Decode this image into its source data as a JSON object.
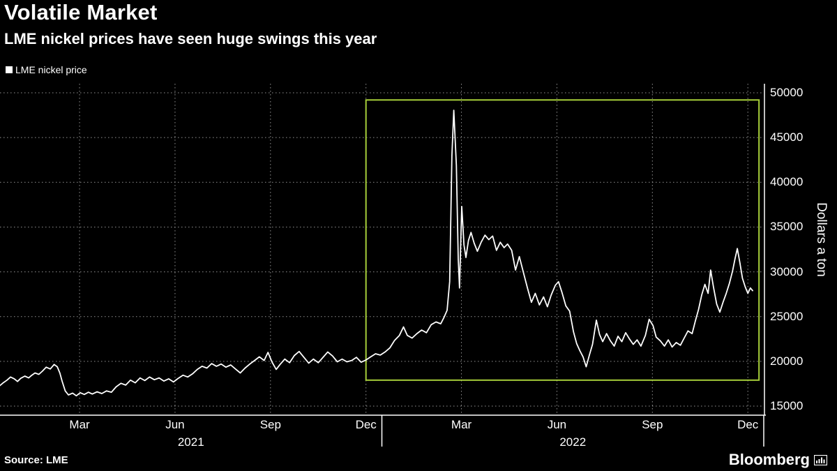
{
  "header": {
    "title": "Volatile Market",
    "subtitle": "LME nickel prices have seen huge swings this year"
  },
  "legend": {
    "items": [
      {
        "label": "LME nickel price",
        "color": "#ffffff"
      }
    ]
  },
  "footer": {
    "source": "Source: LME",
    "brand": "Bloomberg"
  },
  "colors": {
    "background": "#000000",
    "line": "#ffffff",
    "highlight_box": "#a6ce39",
    "grid": "#b9b9b9"
  },
  "chart_data": {
    "type": "line",
    "title": "Volatile Market",
    "subtitle": "LME nickel prices have seen huge swings this year",
    "ylabel": "Dollars a ton",
    "ylim": [
      14000,
      51000
    ],
    "yticks": [
      15000,
      20000,
      25000,
      30000,
      35000,
      40000,
      45000,
      50000
    ],
    "grid": "dotted",
    "legend_position": "top-left",
    "xlim_months": [
      0,
      24
    ],
    "month_zero": "2021-01",
    "xticks": [
      {
        "month": 2.5,
        "label": "Mar"
      },
      {
        "month": 5.5,
        "label": "Jun"
      },
      {
        "month": 8.5,
        "label": "Sep"
      },
      {
        "month": 11.5,
        "label": "Dec"
      },
      {
        "month": 14.5,
        "label": "Mar"
      },
      {
        "month": 17.5,
        "label": "Jun"
      },
      {
        "month": 20.5,
        "label": "Sep"
      },
      {
        "month": 23.5,
        "label": "Dec"
      }
    ],
    "year_labels": [
      {
        "label": "2021",
        "month": 6
      },
      {
        "label": "2022",
        "month": 18
      }
    ],
    "year_tick_months": [
      12,
      24
    ],
    "highlight_box": {
      "x0_month": 11.5,
      "x1_month": 23.85,
      "y0": 17900,
      "y1": 49200,
      "color": "#a6ce39"
    },
    "series": [
      {
        "name": "LME nickel price",
        "color": "#ffffff",
        "points": [
          [
            0.0,
            17300
          ],
          [
            0.1,
            17600
          ],
          [
            0.22,
            17900
          ],
          [
            0.33,
            18250
          ],
          [
            0.45,
            18050
          ],
          [
            0.55,
            17750
          ],
          [
            0.65,
            18100
          ],
          [
            0.78,
            18350
          ],
          [
            0.9,
            18150
          ],
          [
            1.0,
            18450
          ],
          [
            1.1,
            18700
          ],
          [
            1.22,
            18550
          ],
          [
            1.33,
            18900
          ],
          [
            1.45,
            19350
          ],
          [
            1.58,
            19150
          ],
          [
            1.7,
            19650
          ],
          [
            1.8,
            19400
          ],
          [
            1.88,
            18700
          ],
          [
            1.95,
            17800
          ],
          [
            2.05,
            16700
          ],
          [
            2.15,
            16250
          ],
          [
            2.28,
            16450
          ],
          [
            2.4,
            16150
          ],
          [
            2.52,
            16500
          ],
          [
            2.65,
            16300
          ],
          [
            2.78,
            16550
          ],
          [
            2.9,
            16350
          ],
          [
            3.05,
            16600
          ],
          [
            3.2,
            16400
          ],
          [
            3.35,
            16700
          ],
          [
            3.5,
            16550
          ],
          [
            3.65,
            17150
          ],
          [
            3.8,
            17550
          ],
          [
            3.95,
            17350
          ],
          [
            4.1,
            17900
          ],
          [
            4.25,
            17600
          ],
          [
            4.4,
            18150
          ],
          [
            4.55,
            17850
          ],
          [
            4.7,
            18250
          ],
          [
            4.85,
            17950
          ],
          [
            5.0,
            18150
          ],
          [
            5.15,
            17800
          ],
          [
            5.3,
            18050
          ],
          [
            5.45,
            17700
          ],
          [
            5.6,
            18100
          ],
          [
            5.75,
            18450
          ],
          [
            5.9,
            18250
          ],
          [
            6.05,
            18600
          ],
          [
            6.2,
            19100
          ],
          [
            6.35,
            19450
          ],
          [
            6.5,
            19250
          ],
          [
            6.65,
            19750
          ],
          [
            6.8,
            19450
          ],
          [
            6.95,
            19700
          ],
          [
            7.1,
            19350
          ],
          [
            7.25,
            19600
          ],
          [
            7.4,
            19150
          ],
          [
            7.55,
            18700
          ],
          [
            7.7,
            19250
          ],
          [
            7.85,
            19700
          ],
          [
            8.0,
            20100
          ],
          [
            8.15,
            20500
          ],
          [
            8.3,
            20100
          ],
          [
            8.42,
            21000
          ],
          [
            8.55,
            19900
          ],
          [
            8.68,
            19100
          ],
          [
            8.8,
            19650
          ],
          [
            8.95,
            20250
          ],
          [
            9.1,
            19850
          ],
          [
            9.25,
            20650
          ],
          [
            9.4,
            21100
          ],
          [
            9.55,
            20450
          ],
          [
            9.7,
            19800
          ],
          [
            9.85,
            20250
          ],
          [
            10.0,
            19850
          ],
          [
            10.15,
            20450
          ],
          [
            10.3,
            21050
          ],
          [
            10.45,
            20600
          ],
          [
            10.6,
            19950
          ],
          [
            10.75,
            20250
          ],
          [
            10.9,
            19950
          ],
          [
            11.05,
            20100
          ],
          [
            11.2,
            20450
          ],
          [
            11.35,
            19900
          ],
          [
            11.5,
            20150
          ],
          [
            11.65,
            20500
          ],
          [
            11.8,
            20850
          ],
          [
            11.95,
            20700
          ],
          [
            12.1,
            21050
          ],
          [
            12.25,
            21500
          ],
          [
            12.4,
            22350
          ],
          [
            12.55,
            22900
          ],
          [
            12.68,
            23850
          ],
          [
            12.8,
            22900
          ],
          [
            12.95,
            22600
          ],
          [
            13.1,
            23100
          ],
          [
            13.25,
            23500
          ],
          [
            13.4,
            23200
          ],
          [
            13.55,
            24100
          ],
          [
            13.7,
            24400
          ],
          [
            13.85,
            24200
          ],
          [
            13.95,
            24900
          ],
          [
            14.05,
            25700
          ],
          [
            14.13,
            28900
          ],
          [
            14.2,
            42990
          ],
          [
            14.26,
            48050
          ],
          [
            14.34,
            41900
          ],
          [
            14.4,
            31400
          ],
          [
            14.44,
            28200
          ],
          [
            14.51,
            37300
          ],
          [
            14.58,
            33000
          ],
          [
            14.64,
            31600
          ],
          [
            14.72,
            33500
          ],
          [
            14.8,
            34400
          ],
          [
            14.9,
            33200
          ],
          [
            15.0,
            32300
          ],
          [
            15.12,
            33300
          ],
          [
            15.24,
            34100
          ],
          [
            15.36,
            33600
          ],
          [
            15.48,
            34000
          ],
          [
            15.6,
            32400
          ],
          [
            15.72,
            33300
          ],
          [
            15.84,
            32700
          ],
          [
            15.95,
            33100
          ],
          [
            16.08,
            32400
          ],
          [
            16.2,
            30200
          ],
          [
            16.32,
            31700
          ],
          [
            16.45,
            29900
          ],
          [
            16.58,
            28100
          ],
          [
            16.7,
            26600
          ],
          [
            16.82,
            27600
          ],
          [
            16.95,
            26300
          ],
          [
            17.08,
            27200
          ],
          [
            17.2,
            26100
          ],
          [
            17.32,
            27400
          ],
          [
            17.45,
            28500
          ],
          [
            17.55,
            28900
          ],
          [
            17.65,
            27800
          ],
          [
            17.78,
            26200
          ],
          [
            17.9,
            25600
          ],
          [
            18.02,
            23300
          ],
          [
            18.12,
            22000
          ],
          [
            18.22,
            21200
          ],
          [
            18.32,
            20500
          ],
          [
            18.42,
            19400
          ],
          [
            18.52,
            20700
          ],
          [
            18.62,
            21900
          ],
          [
            18.74,
            24600
          ],
          [
            18.84,
            23000
          ],
          [
            18.94,
            22200
          ],
          [
            19.06,
            23100
          ],
          [
            19.18,
            22300
          ],
          [
            19.3,
            21700
          ],
          [
            19.42,
            22800
          ],
          [
            19.54,
            22200
          ],
          [
            19.66,
            23200
          ],
          [
            19.78,
            22500
          ],
          [
            19.9,
            21900
          ],
          [
            20.02,
            22400
          ],
          [
            20.14,
            21700
          ],
          [
            20.28,
            22900
          ],
          [
            20.4,
            24700
          ],
          [
            20.52,
            24000
          ],
          [
            20.62,
            22700
          ],
          [
            20.75,
            22300
          ],
          [
            20.88,
            21700
          ],
          [
            21.0,
            22400
          ],
          [
            21.12,
            21600
          ],
          [
            21.25,
            22100
          ],
          [
            21.38,
            21800
          ],
          [
            21.5,
            22600
          ],
          [
            21.62,
            23400
          ],
          [
            21.75,
            23100
          ],
          [
            21.85,
            24500
          ],
          [
            21.95,
            25800
          ],
          [
            22.05,
            27400
          ],
          [
            22.15,
            28600
          ],
          [
            22.25,
            27600
          ],
          [
            22.33,
            30200
          ],
          [
            22.42,
            28300
          ],
          [
            22.52,
            26400
          ],
          [
            22.62,
            25500
          ],
          [
            22.72,
            26600
          ],
          [
            22.82,
            27600
          ],
          [
            22.92,
            28700
          ],
          [
            23.02,
            30100
          ],
          [
            23.1,
            31500
          ],
          [
            23.17,
            32600
          ],
          [
            23.25,
            31000
          ],
          [
            23.33,
            29300
          ],
          [
            23.42,
            28300
          ],
          [
            23.5,
            27600
          ],
          [
            23.58,
            28200
          ],
          [
            23.65,
            27900
          ]
        ]
      }
    ]
  }
}
